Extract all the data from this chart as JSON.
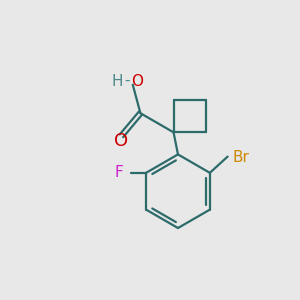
{
  "background_color": "#e8e8e8",
  "bond_color": "#2d6b6b",
  "bond_width": 1.6,
  "figsize": [
    3.0,
    3.0
  ],
  "dpi": 100,
  "colors": {
    "O_carbonyl": "#cc0000",
    "O_hydroxyl": "#cc0000",
    "H": "#4a8a8a",
    "F": "#cc22cc",
    "Br": "#cc8800",
    "bond": "#2d6b6b"
  },
  "font_size": 11
}
